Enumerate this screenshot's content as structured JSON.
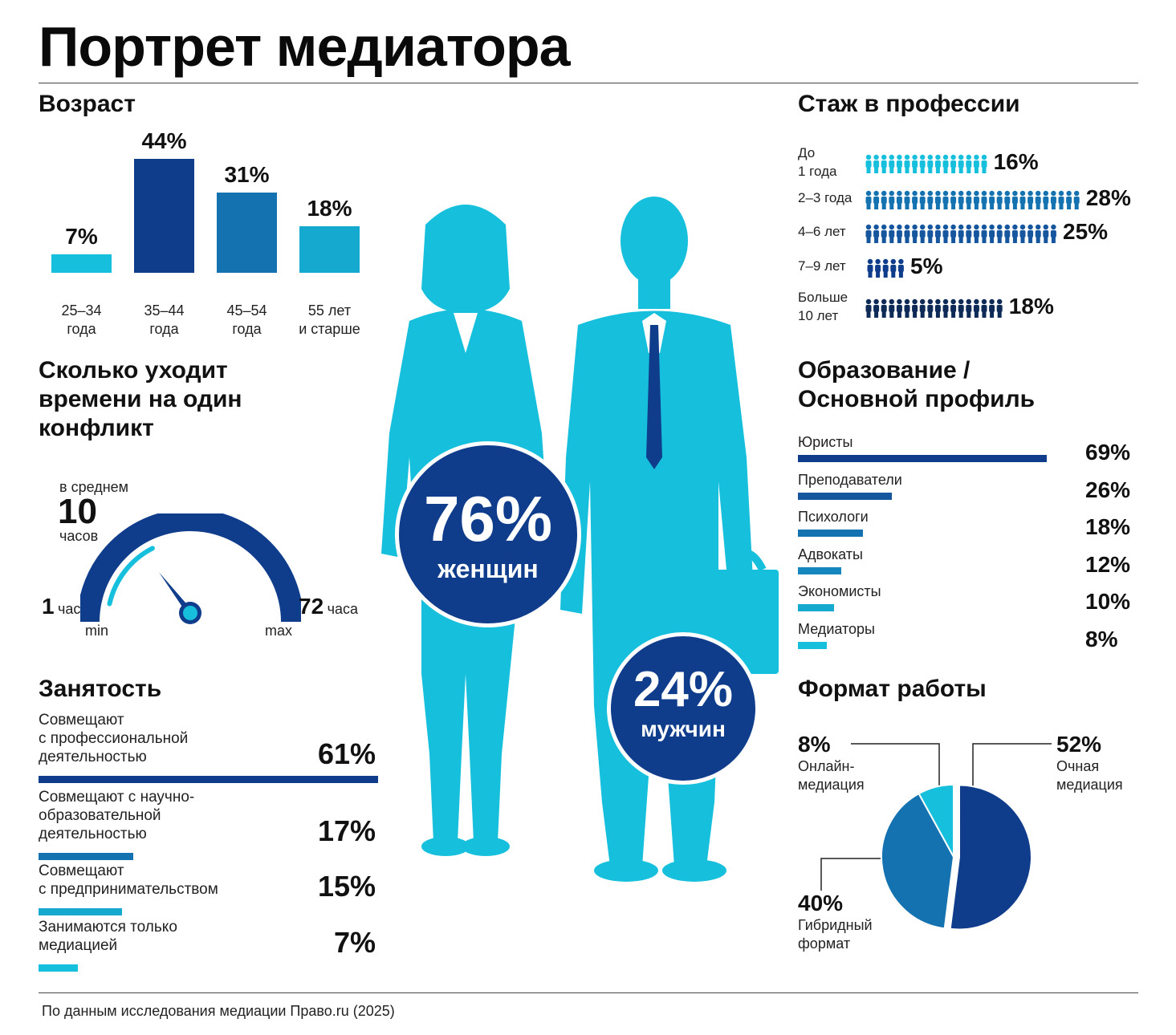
{
  "title": "Портрет медиатора",
  "footer": "По данным исследования медиации Право.ru (2025)",
  "colors": {
    "navy": "#0f3d8c",
    "blue": "#1572b0",
    "teal": "#15a9cf",
    "cyan": "#16c0dd",
    "dark": "#0d2b56"
  },
  "age": {
    "title": "Возраст",
    "chart_data": {
      "type": "bar",
      "categories": [
        "25–34 года",
        "35–44 года",
        "45–54 года",
        "55 лет и старше"
      ],
      "labels_line1": [
        "25–34",
        "35–44",
        "45–54",
        "55 лет"
      ],
      "labels_line2": [
        "года",
        "года",
        "года",
        "и старше"
      ],
      "values": [
        7,
        44,
        31,
        18
      ],
      "value_labels": [
        "7%",
        "44%",
        "31%",
        "18%"
      ],
      "colors": [
        "#16c0dd",
        "#0f3d8c",
        "#1572b0",
        "#15a9cf"
      ]
    }
  },
  "time": {
    "title_line1": "Сколько уходит",
    "title_line2": "времени на один",
    "title_line3": "конфликт",
    "avg_label": "в среднем",
    "avg_value": "10",
    "avg_unit": "часов",
    "min_value": "1",
    "min_unit": "час",
    "min_label": "min",
    "max_value": "72",
    "max_unit": "часа",
    "max_label": "max",
    "gauge": {
      "min": 1,
      "max": 72,
      "value": 10
    }
  },
  "employment": {
    "title": "Занятость",
    "items": [
      {
        "lines": [
          "Совмещают",
          "с профессиональной",
          "деятельностью"
        ],
        "pct": "61%",
        "value": 61,
        "color": "#0f3d8c"
      },
      {
        "lines": [
          "Совмещают с научно-",
          "образовательной",
          "деятельностью"
        ],
        "pct": "17%",
        "value": 17,
        "color": "#1572b0"
      },
      {
        "lines": [
          "Совмещают",
          "с предпринимательством"
        ],
        "pct": "15%",
        "value": 15,
        "color": "#15a9cf"
      },
      {
        "lines": [
          "Занимаются только",
          "медиацией"
        ],
        "pct": "7%",
        "value": 7,
        "color": "#16c0dd"
      }
    ]
  },
  "gender": {
    "women_pct": "76%",
    "women_label": "женщин",
    "men_pct": "24%",
    "men_label": "мужчин",
    "chart_data": {
      "type": "pie",
      "categories": [
        "женщин",
        "мужчин"
      ],
      "values": [
        76,
        24
      ]
    }
  },
  "experience": {
    "title": "Стаж в профессии",
    "chart_data": {
      "type": "bar",
      "categories": [
        "До 1 года",
        "2–3 года",
        "4–6 лет",
        "7–9 лет",
        "Больше 10 лет"
      ],
      "labels_line1": [
        "До",
        "2–3 года",
        "4–6 лет",
        "7–9 лет",
        "Больше"
      ],
      "labels_line2": [
        "1 года",
        "",
        "",
        "",
        "10 лет"
      ],
      "values": [
        16,
        28,
        25,
        5,
        18
      ],
      "value_labels": [
        "16%",
        "28%",
        "25%",
        "5%",
        "18%"
      ],
      "colors": [
        "#16c0dd",
        "#1572b0",
        "#15569f",
        "#0f3d8c",
        "#0d2b56"
      ]
    }
  },
  "education": {
    "title_line1": "Образование /",
    "title_line2": "Основной профиль",
    "chart_data": {
      "type": "bar",
      "categories": [
        "Юристы",
        "Преподаватели",
        "Психологи",
        "Адвокаты",
        "Экономисты",
        "Медиаторы"
      ],
      "values": [
        69,
        26,
        18,
        12,
        10,
        8
      ],
      "value_labels": [
        "69%",
        "26%",
        "18%",
        "12%",
        "10%",
        "8%"
      ],
      "colors": [
        "#0f3d8c",
        "#15569f",
        "#1572b0",
        "#1586be",
        "#15a9cf",
        "#16c0dd"
      ]
    }
  },
  "format": {
    "title": "Формат работы",
    "online_pct": "8%",
    "online_label_1": "Онлайн-",
    "online_label_2": "медиация",
    "inperson_pct": "52%",
    "inperson_label_1": "Очная",
    "inperson_label_2": "медиация",
    "hybrid_pct": "40%",
    "hybrid_label_1": "Гибридный",
    "hybrid_label_2": "формат",
    "chart_data": {
      "type": "pie",
      "categories": [
        "Очная медиация",
        "Гибридный формат",
        "Онлайн-медиация"
      ],
      "values": [
        52,
        40,
        8
      ],
      "colors": [
        "#0f3d8c",
        "#1572b0",
        "#16c0dd"
      ]
    }
  }
}
